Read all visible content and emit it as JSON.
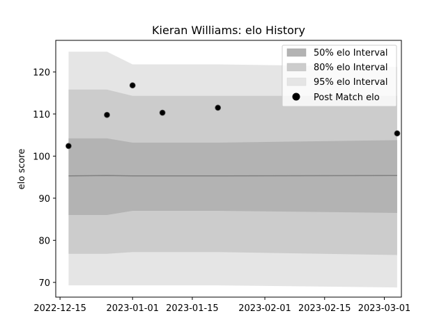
{
  "chart_data": {
    "type": "line",
    "title": "Kieran Williams: elo History",
    "xlabel": "",
    "ylabel": "elo score",
    "x_tick_labels": [
      "2022-12-15",
      "2023-01-01",
      "2023-01-15",
      "2023-02-01",
      "2023-02-15",
      "2023-03-01"
    ],
    "x_tick_dates": [
      "2022-12-15",
      "2023-01-01",
      "2023-01-15",
      "2023-02-01",
      "2023-02-15",
      "2023-03-01"
    ],
    "xlim": [
      "2022-12-14",
      "2023-03-05"
    ],
    "y_ticks": [
      70,
      80,
      90,
      100,
      110,
      120
    ],
    "ylim": [
      66.5,
      127.5
    ],
    "grid": false,
    "legend_position": "top-right",
    "x": [
      "2022-12-17",
      "2022-12-26",
      "2023-01-01",
      "2023-01-08",
      "2023-01-21",
      "2023-03-04"
    ],
    "mean": [
      95.3,
      95.4,
      95.3,
      95.3,
      95.3,
      95.4
    ],
    "interval_50": {
      "name": "50% elo Interval",
      "lower": [
        86.0,
        86.0,
        87.0,
        87.0,
        87.0,
        86.5
      ],
      "upper": [
        104.2,
        104.2,
        103.2,
        103.2,
        103.2,
        103.8
      ],
      "color": "#b3b3b3"
    },
    "interval_80": {
      "name": "80% elo Interval",
      "lower": [
        76.8,
        76.8,
        77.2,
        77.2,
        77.2,
        76.5
      ],
      "upper": [
        115.8,
        115.8,
        114.3,
        114.3,
        114.3,
        114.3
      ],
      "color": "#cccccc"
    },
    "interval_95": {
      "name": "95% elo Interval",
      "lower": [
        69.3,
        69.3,
        69.3,
        69.3,
        69.3,
        68.8
      ],
      "upper": [
        124.8,
        124.8,
        121.8,
        121.8,
        121.8,
        121.2
      ],
      "color": "#e5e5e5"
    },
    "points": {
      "name": "Post Match elo",
      "x": [
        "2022-12-17",
        "2022-12-26",
        "2023-01-01",
        "2023-01-08",
        "2023-01-21",
        "2023-03-04"
      ],
      "y": [
        102.4,
        109.8,
        116.8,
        110.3,
        111.5,
        105.4
      ],
      "color": "#000000"
    }
  }
}
